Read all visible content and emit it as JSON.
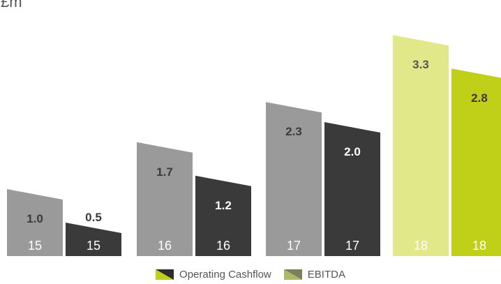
{
  "chart_data": {
    "type": "bar",
    "unit": "£m",
    "categories": [
      "15",
      "16",
      "17",
      "18"
    ],
    "series": [
      {
        "name": "EBITDA",
        "values": [
          1.0,
          1.7,
          2.3,
          3.3
        ]
      },
      {
        "name": "Operating Cashflow",
        "values": [
          0.5,
          1.2,
          2.0,
          2.8
        ]
      }
    ],
    "value_labels": {
      "EBITDA": [
        "1.0",
        "1.7",
        "2.3",
        "3.3"
      ],
      "Operating Cashflow": [
        "0.5",
        "1.2",
        "2.0",
        "2.8"
      ]
    },
    "ylim": [
      0,
      3.5
    ],
    "grid": false,
    "legend_placement": "bottom-center",
    "colors": {
      "ebitda_historic": "#9a9a9a",
      "cashflow_historic": "#3a3a3a",
      "ebitda_forecast": "#e1e88a",
      "cashflow_forecast": "#c0cf17",
      "legend_ebitda_a": "#adb86a",
      "legend_ebitda_b": "#7c7f5a",
      "legend_cashflow_a": "#c0cf17",
      "legend_cashflow_b": "#2d2d2d"
    }
  },
  "legend": {
    "items": [
      {
        "label": "Operating Cashflow",
        "swatch": "cashflow"
      },
      {
        "label": "EBITDA",
        "swatch": "ebitda"
      }
    ]
  }
}
